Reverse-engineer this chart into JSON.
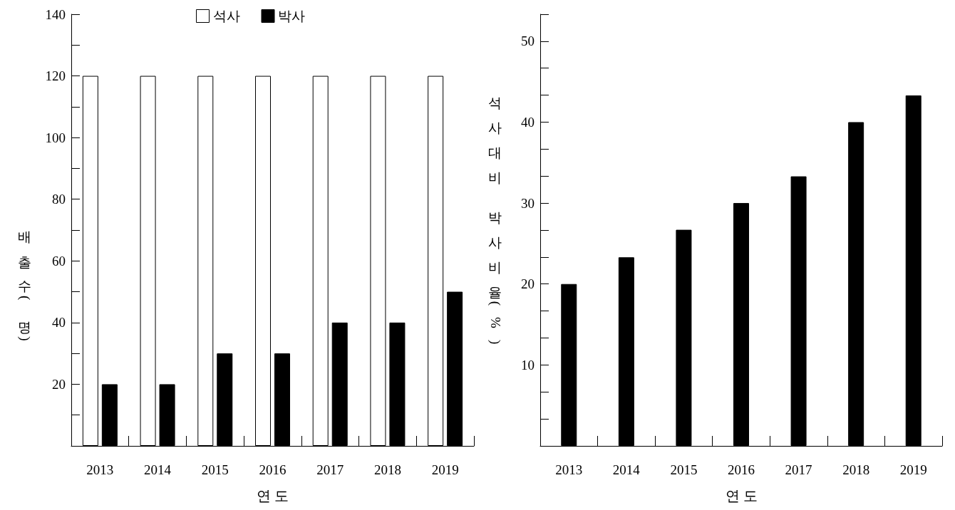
{
  "chart_data": [
    {
      "type": "bar",
      "xlabel": "연 도",
      "ylabel": "배출수(명)",
      "categories": [
        "2013",
        "2014",
        "2015",
        "2016",
        "2017",
        "2018",
        "2019"
      ],
      "series": [
        {
          "name": "석사",
          "color": "#ffffff",
          "values": [
            120,
            120,
            120,
            120,
            120,
            120,
            120
          ]
        },
        {
          "name": "박사",
          "color": "#000000",
          "values": [
            20,
            20,
            30,
            30,
            40,
            40,
            50
          ]
        }
      ],
      "ylim": [
        0,
        140
      ],
      "yticks": [
        {
          "value": 10,
          "label": null
        },
        20,
        {
          "value": 30,
          "label": null
        },
        40,
        {
          "value": 50,
          "label": null
        },
        60,
        {
          "value": 70,
          "label": null
        },
        80,
        {
          "value": 90,
          "label": null
        },
        100,
        {
          "value": 110,
          "label": null
        },
        120,
        {
          "value": 130,
          "label": null
        },
        140
      ],
      "legend": "top",
      "grid": false
    },
    {
      "type": "bar",
      "xlabel": "연 도",
      "ylabel": "석사대비 박사비율(%)",
      "categories": [
        "2013",
        "2014",
        "2015",
        "2016",
        "2017",
        "2018",
        "2019"
      ],
      "values": [
        20,
        23.3,
        26.7,
        30,
        33.3,
        40,
        43.3
      ],
      "color": "#000000",
      "ylim": [
        0,
        53.33
      ],
      "yticks": [
        {
          "value": 3.33,
          "label": null
        },
        {
          "value": 6.67,
          "label": null
        },
        10,
        {
          "value": 13.33,
          "label": null
        },
        {
          "value": 16.67,
          "label": null
        },
        20,
        {
          "value": 23.33,
          "label": null
        },
        {
          "value": 26.67,
          "label": null
        },
        30,
        {
          "value": 33.33,
          "label": null
        },
        {
          "value": 36.67,
          "label": null
        },
        40,
        {
          "value": 43.33,
          "label": null
        },
        {
          "value": 46.67,
          "label": null
        },
        50,
        {
          "value": 53.33,
          "label": null
        }
      ],
      "grid": false
    }
  ]
}
